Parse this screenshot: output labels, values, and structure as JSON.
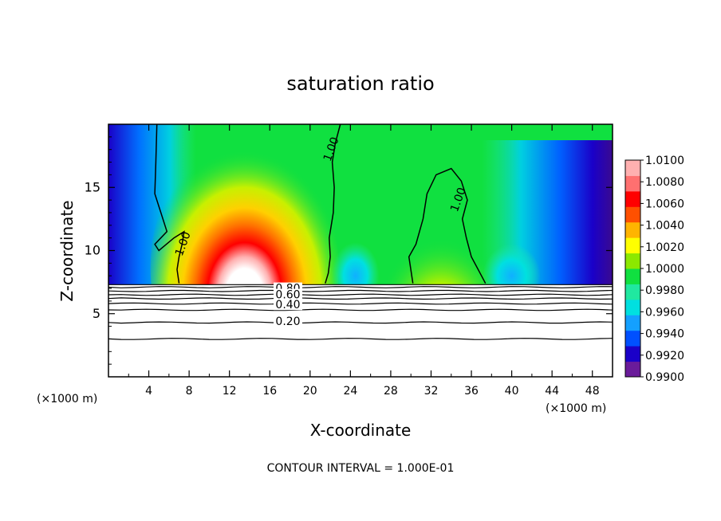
{
  "chart_data": {
    "type": "heatmap",
    "title": "saturation ratio",
    "xlabel": "X-coordinate",
    "ylabel": "Z-coordinate",
    "x_unit_left": "(×1000 m)",
    "x_unit_right": "(×1000 m)",
    "xlim": [
      0,
      50
    ],
    "ylim": [
      0,
      20
    ],
    "xticks": [
      4,
      8,
      12,
      16,
      20,
      24,
      28,
      32,
      36,
      40,
      44,
      48
    ],
    "yticks": [
      5,
      10,
      15
    ],
    "footer": "CONTOUR INTERVAL = 1.000E-01",
    "colorbar": {
      "min": 0.99,
      "max": 1.01,
      "tick_labels": [
        "1.0100",
        "1.0080",
        "1.0060",
        "1.0040",
        "1.0020",
        "1.0000",
        "0.9980",
        "0.9960",
        "0.9940",
        "0.9920",
        "0.9900"
      ],
      "colors": [
        "#6a1b9a",
        "#1a00c8",
        "#0050ff",
        "#14a0ff",
        "#00e0e0",
        "#20e8a0",
        "#10e040",
        "#8ce800",
        "#ffff00",
        "#ffb400",
        "#ff5000",
        "#ff0000",
        "#ff7070",
        "#ffb0b0"
      ]
    },
    "contour_labels": [
      {
        "text": "1.00",
        "x": 7.5,
        "z": 10.5
      },
      {
        "text": "1.00",
        "x": 22.2,
        "z": 18.0
      },
      {
        "text": "1.00",
        "x": 34.8,
        "z": 14.0
      },
      {
        "text": "0.80",
        "x": 17.8,
        "z": 6.9
      },
      {
        "text": "0.60",
        "x": 17.8,
        "z": 6.4
      },
      {
        "text": "0.40",
        "x": 17.8,
        "z": 5.6
      },
      {
        "text": "0.20",
        "x": 17.8,
        "z": 4.3
      }
    ],
    "terrain_top_z": 7.3,
    "lower_contour_levels_z": [
      3.0,
      4.3,
      5.3,
      5.8,
      6.2,
      6.5,
      6.8,
      7.1
    ]
  }
}
